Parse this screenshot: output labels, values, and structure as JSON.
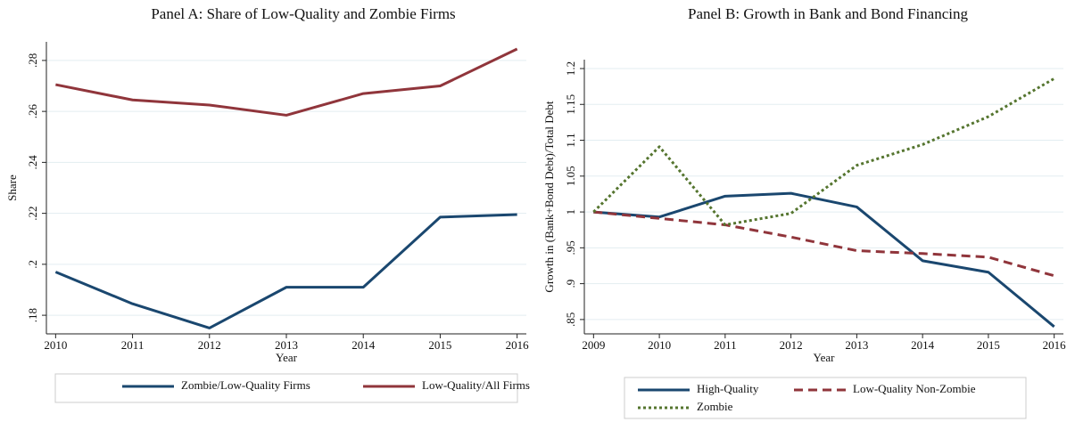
{
  "chart_data": [
    {
      "type": "line",
      "title": "Panel A: Share of Low-Quality and Zombie Firms",
      "xlabel": "Year",
      "ylabel": "Share",
      "x": [
        2010,
        2011,
        2012,
        2013,
        2014,
        2015,
        2016
      ],
      "xlim": [
        2009.88,
        2016.12
      ],
      "xticks": [
        2010,
        2011,
        2012,
        2013,
        2014,
        2015,
        2016
      ],
      "ylim": [
        0.1727,
        0.2873
      ],
      "yticks": [
        {
          "value": 0.18,
          "label": ".18"
        },
        {
          "value": 0.2,
          "label": ".2"
        },
        {
          "value": 0.22,
          "label": ".22"
        },
        {
          "value": 0.24,
          "label": ".24"
        },
        {
          "value": 0.26,
          "label": ".26"
        },
        {
          "value": 0.28,
          "label": ".28"
        }
      ],
      "grid": true,
      "series": [
        {
          "name": "Zombie/Low-Quality Firms",
          "color": "#1a476f",
          "dash": "solid",
          "values": [
            0.197,
            0.1845,
            0.175,
            0.191,
            0.191,
            0.2185,
            0.2195
          ]
        },
        {
          "name": "Low-Quality/All Firms",
          "color": "#90353b",
          "dash": "solid",
          "values": [
            0.2705,
            0.2645,
            0.2625,
            0.2585,
            0.267,
            0.27,
            0.2845
          ]
        }
      ]
    },
    {
      "type": "line",
      "title": "Panel B: Growth in Bank and Bond Financing",
      "xlabel": "Year",
      "ylabel": "Growth in (Bank+Bond Debt)/Total Debt",
      "x": [
        2009,
        2010,
        2011,
        2012,
        2013,
        2014,
        2015,
        2016
      ],
      "xlim": [
        2008.86,
        2016.14
      ],
      "xticks": [
        2009,
        2010,
        2011,
        2012,
        2013,
        2014,
        2015,
        2016
      ],
      "ylim": [
        0.83,
        1.2124
      ],
      "yticks": [
        {
          "value": 0.85,
          "label": ".85"
        },
        {
          "value": 0.9,
          "label": ".9"
        },
        {
          "value": 0.95,
          "label": ".95"
        },
        1,
        1.05,
        1.1,
        1.15,
        1.2
      ],
      "grid": true,
      "series": [
        {
          "name": "High-Quality",
          "color": "#1a476f",
          "dash": "solid",
          "values": [
            1,
            0.993,
            1.022,
            1.026,
            1.007,
            0.932,
            0.916,
            0.84
          ]
        },
        {
          "name": "Low-Quality Non-Zombie",
          "color": "#90353b",
          "dash": "dashed",
          "values": [
            1,
            0.991,
            0.982,
            0.965,
            0.946,
            0.942,
            0.937,
            0.911
          ]
        },
        {
          "name": "Zombie",
          "color": "#55752f",
          "dash": "dotted",
          "values": [
            1,
            1.091,
            0.982,
            0.998,
            1.065,
            1.094,
            1.133,
            1.186
          ]
        }
      ]
    }
  ]
}
